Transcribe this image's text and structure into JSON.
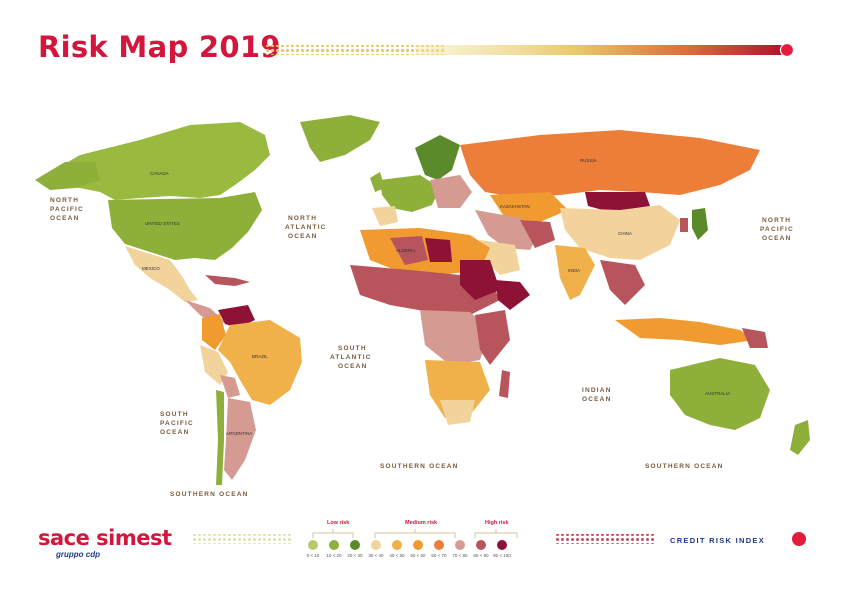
{
  "header": {
    "title": "Risk Map 2019"
  },
  "oceans": {
    "north_pacific_left": [
      "NORTH",
      "PACIFIC",
      "OCEAN"
    ],
    "north_atlantic": [
      "NORTH",
      "ATLANTIC",
      "OCEAN"
    ],
    "north_pacific_right": [
      "NORTH",
      "PACIFIC",
      "OCEAN"
    ],
    "south_atlantic": [
      "SOUTH",
      "ATLANTIC",
      "OCEAN"
    ],
    "south_pacific": [
      "SOUTH",
      "PACIFIC",
      "OCEAN"
    ],
    "indian": [
      "INDIAN",
      "OCEAN"
    ],
    "southern_left": "SOUTHERN OCEAN",
    "southern_mid": "SOUTHERN OCEAN",
    "southern_right": "SOUTHERN OCEAN"
  },
  "countries": {
    "us": "UNITED STATES",
    "canada": "CANADA",
    "russia": "RUSSIA",
    "china": "CHINA",
    "brazil": "BRAZIL",
    "australia": "AUSTRALIA",
    "india": "INDIA",
    "algeria": "ALGERIA",
    "kazakhstan": "KAZAKHSTAN",
    "argentina": "ARGENTINA",
    "mexico": "MEXICO"
  },
  "footer": {
    "logo_name": "sace simest",
    "logo_sub": "gruppo cdp",
    "credit_label": "CREDIT RISK INDEX"
  },
  "legend": {
    "groups": [
      {
        "label": "Low risk"
      },
      {
        "label": "Medium risk"
      },
      {
        "label": "High risk"
      }
    ],
    "swatches": [
      {
        "color": "#b8c96a",
        "label": "0 < 10"
      },
      {
        "color": "#8eb03b",
        "label": "10 < 20"
      },
      {
        "color": "#5a8a2a",
        "label": "20 < 30"
      },
      {
        "color": "#f2d39b",
        "label": "30 < 40"
      },
      {
        "color": "#f0b04a",
        "label": "40 < 50"
      },
      {
        "color": "#f09a30",
        "label": "50 < 60"
      },
      {
        "color": "#ec7e3a",
        "label": "60 < 70"
      },
      {
        "color": "#d59a92",
        "label": "70 < 80"
      },
      {
        "color": "#b8555c",
        "label": "80 < 90"
      },
      {
        "color": "#8e1236",
        "label": "90 < 100"
      }
    ]
  },
  "colors": {
    "brand_red": "#d3163b",
    "navy": "#1c3a8a",
    "title_bar_start": "#f3e8a4",
    "title_bar_end": "#c21433"
  }
}
